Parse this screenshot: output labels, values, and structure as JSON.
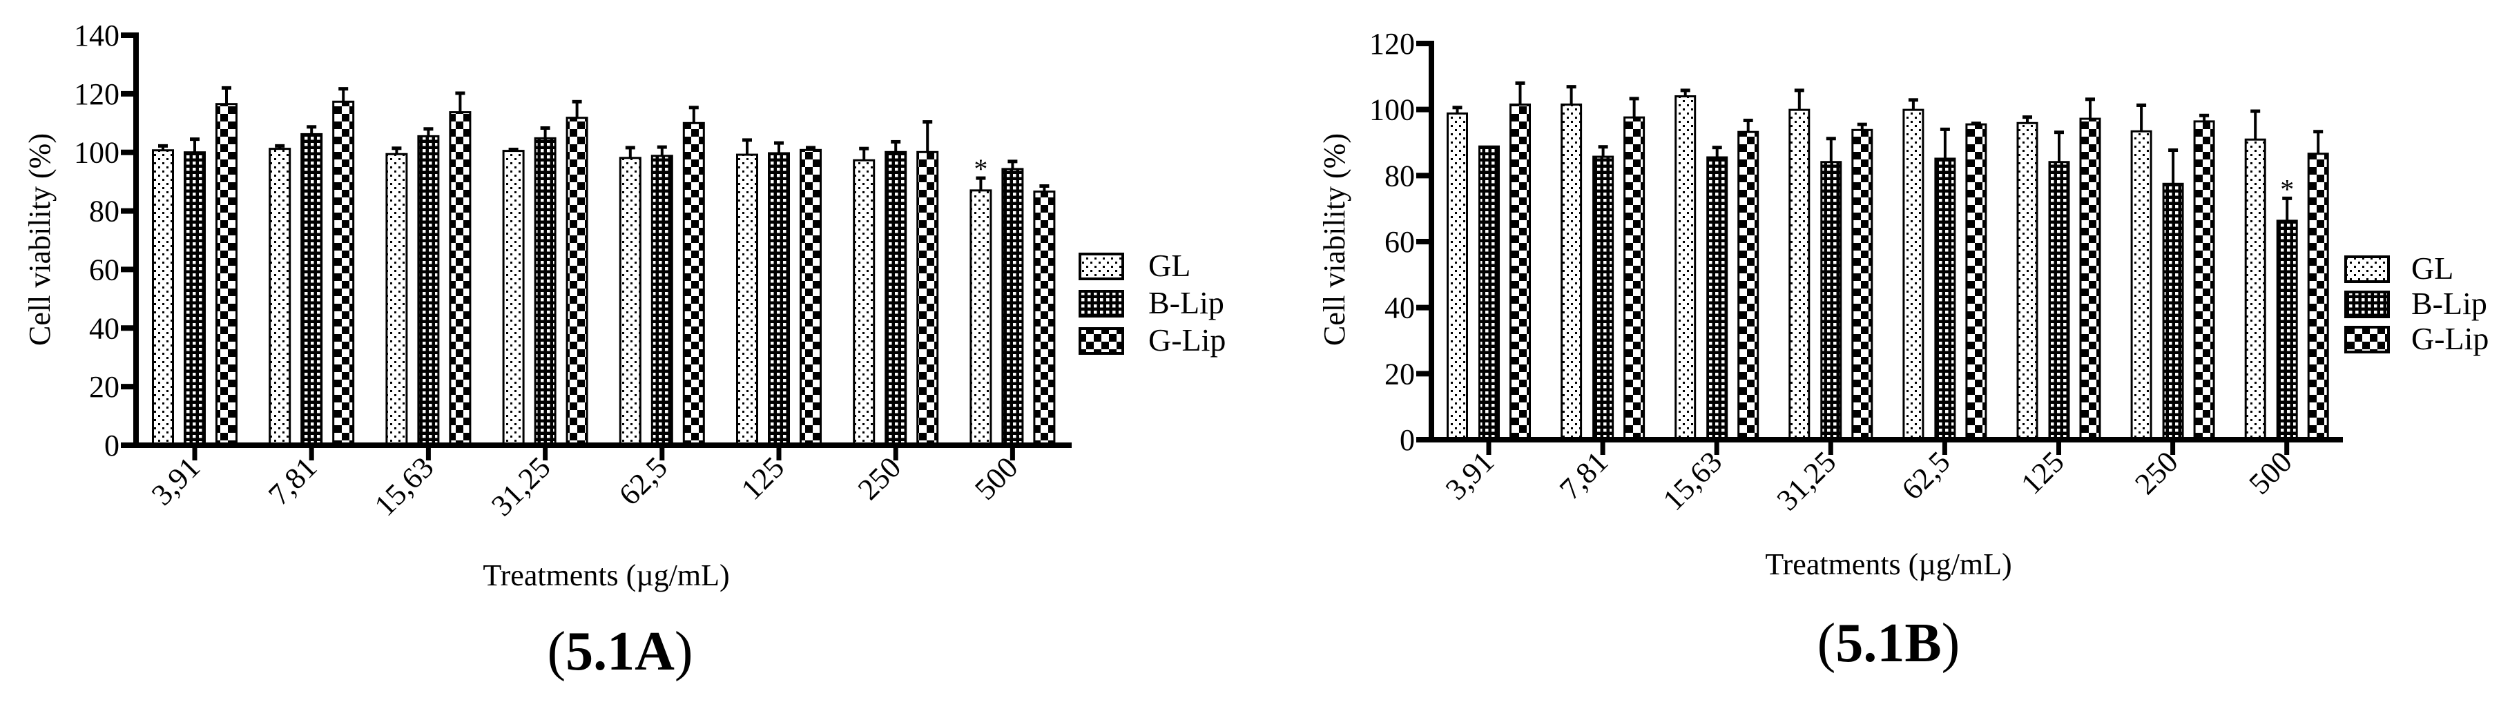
{
  "figure": {
    "panels": [
      {
        "id": "5.1A",
        "caption_open": "(",
        "caption_label": "5.1A",
        "caption_close": ")",
        "ylabel": "Cell viability (%)",
        "xlabel": "Treatments (µg/mL)",
        "yticks": [
          "0",
          "20",
          "40",
          "60",
          "80",
          "100",
          "120",
          "140"
        ],
        "categories": [
          "3,91",
          "7,81",
          "15,63",
          "31,25",
          "62,5",
          "125",
          "250",
          "500"
        ],
        "legend": [
          "GL",
          "B-Lip",
          "G-Lip"
        ]
      },
      {
        "id": "5.1B",
        "caption_open": "(",
        "caption_label": "5.1B",
        "caption_close": ")",
        "ylabel": "Cell viability (%)",
        "xlabel": "Treatments (µg/mL)",
        "yticks": [
          "0",
          "20",
          "40",
          "60",
          "80",
          "100",
          "120"
        ],
        "categories": [
          "3,91",
          "7,81",
          "15,63",
          "31,25",
          "62,5",
          "125",
          "250",
          "500"
        ],
        "legend": [
          "GL",
          "B-Lip",
          "G-Lip"
        ]
      }
    ]
  },
  "chart_data": [
    {
      "type": "bar",
      "title": "(5.1A)",
      "xlabel": "Treatments (µg/mL)",
      "ylabel": "Cell viability (%)",
      "ylim": [
        0,
        140
      ],
      "yticks": [
        0,
        20,
        40,
        60,
        80,
        100,
        120,
        140
      ],
      "grid": false,
      "legend_position": "right",
      "categories": [
        "3,91",
        "7,81",
        "15,63",
        "31,25",
        "62,5",
        "125",
        "250",
        "500"
      ],
      "series": [
        {
          "name": "GL",
          "pattern": "dots",
          "values": [
            100.7,
            101.2,
            99.4,
            100.5,
            98.1,
            99.2,
            97.3,
            87.0
          ],
          "errors": [
            1.5,
            1.0,
            2.0,
            0.5,
            3.5,
            5.0,
            4.0,
            4.2
          ]
        },
        {
          "name": "B-Lip",
          "pattern": "small-checker",
          "values": [
            100.0,
            106.2,
            105.5,
            104.8,
            98.8,
            99.7,
            100.1,
            94.3
          ],
          "errors": [
            4.5,
            2.5,
            2.5,
            3.5,
            3.0,
            3.5,
            3.5,
            2.6
          ]
        },
        {
          "name": "G-Lip",
          "pattern": "large-checker",
          "values": [
            116.5,
            117.3,
            113.7,
            111.8,
            110.0,
            100.8,
            100.1,
            86.6
          ],
          "errors": [
            5.5,
            4.4,
            6.5,
            5.5,
            5.3,
            0.8,
            10.3,
            1.9
          ]
        }
      ],
      "annotations": [
        {
          "text": "*",
          "series": "GL",
          "category": "500"
        }
      ]
    },
    {
      "type": "bar",
      "title": "(5.1B)",
      "xlabel": "Treatments (µg/mL)",
      "ylabel": "Cell viability (%)",
      "ylim": [
        0,
        120
      ],
      "yticks": [
        0,
        20,
        40,
        60,
        80,
        100,
        120
      ],
      "grid": false,
      "legend_position": "right",
      "categories": [
        "3,91",
        "7,81",
        "15,63",
        "31,25",
        "62,5",
        "125",
        "250",
        "500"
      ],
      "series": [
        {
          "name": "GL",
          "pattern": "dots",
          "values": [
            98.8,
            101.5,
            104.0,
            99.9,
            99.9,
            95.9,
            93.4,
            90.9
          ],
          "errors": [
            1.8,
            5.4,
            1.8,
            5.9,
            3.0,
            1.8,
            7.9,
            8.6
          ]
        },
        {
          "name": "B-Lip",
          "pattern": "small-checker",
          "values": [
            88.8,
            85.7,
            85.5,
            84.1,
            85.1,
            84.1,
            77.5,
            66.3
          ],
          "errors": [
            0,
            3.0,
            3.0,
            7.1,
            8.9,
            9.0,
            10.2,
            6.8
          ]
        },
        {
          "name": "G-Lip",
          "pattern": "large-checker",
          "values": [
            101.5,
            97.6,
            93.2,
            93.8,
            95.5,
            97.2,
            96.4,
            86.6
          ],
          "errors": [
            6.5,
            5.7,
            3.5,
            1.7,
            0.3,
            5.9,
            1.8,
            6.7
          ]
        }
      ],
      "annotations": [
        {
          "text": "*",
          "series": "B-Lip",
          "category": "500"
        }
      ]
    }
  ]
}
